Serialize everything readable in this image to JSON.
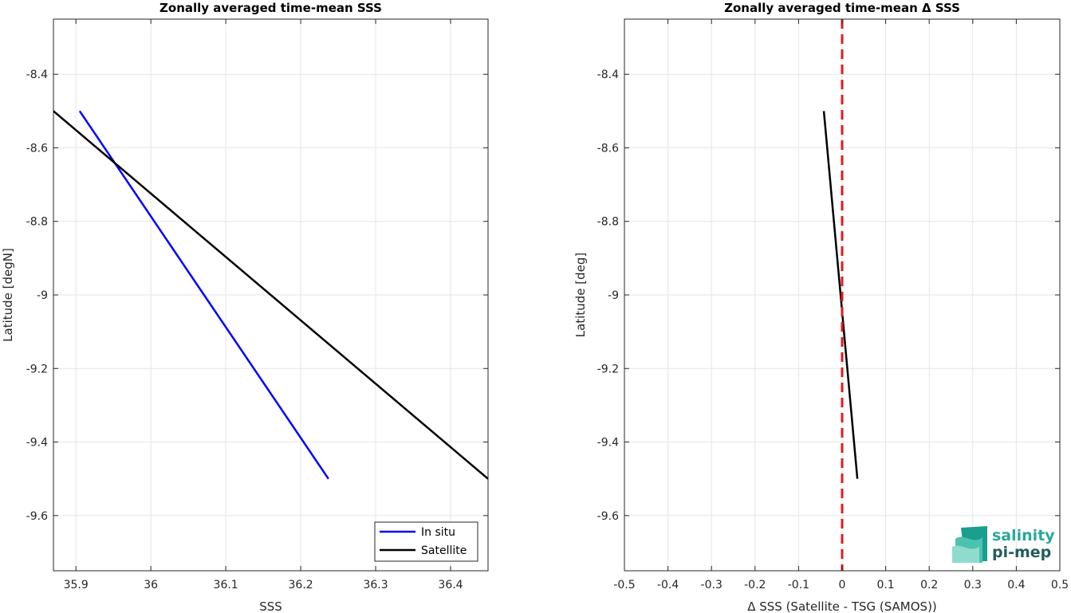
{
  "chart_data": [
    {
      "type": "line",
      "title": "Zonally averaged time-mean SSS",
      "xlabel": "SSS",
      "ylabel": "Latitude [degN]",
      "xlim": [
        35.87,
        36.45
      ],
      "ylim": [
        -9.75,
        -8.25
      ],
      "xticks": [
        35.9,
        36.0,
        36.1,
        36.2,
        36.3,
        36.4
      ],
      "xtick_labels": [
        "35.9",
        "36",
        "36.1",
        "36.2",
        "36.3",
        "36.4"
      ],
      "yticks": [
        -8.4,
        -8.6,
        -8.8,
        -9.0,
        -9.2,
        -9.4,
        -9.6
      ],
      "ytick_labels": [
        "-8.4",
        "-8.6",
        "-8.8",
        "-9",
        "-9.2",
        "-9.4",
        "-9.6"
      ],
      "grid": true,
      "legend_position": "bottom-right",
      "series": [
        {
          "name": "In situ",
          "color": "#0000ff",
          "x": [
            35.905,
            36.237
          ],
          "y": [
            -8.5,
            -9.5
          ]
        },
        {
          "name": "Satellite",
          "color": "#000000",
          "x": [
            35.87,
            36.45
          ],
          "y": [
            -8.5,
            -9.5
          ]
        }
      ]
    },
    {
      "type": "line",
      "title": "Zonally averaged time-mean Δ SSS",
      "xlabel": "Δ SSS (Satellite - TSG (SAMOS))",
      "ylabel": "Latitude [deg]",
      "xlim": [
        -0.5,
        0.5
      ],
      "ylim": [
        -9.75,
        -8.25
      ],
      "xticks": [
        -0.5,
        -0.4,
        -0.3,
        -0.2,
        -0.1,
        0,
        0.1,
        0.2,
        0.3,
        0.4,
        0.5
      ],
      "xtick_labels": [
        "-0.5",
        "-0.4",
        "-0.3",
        "-0.2",
        "-0.1",
        "0",
        "0.1",
        "0.2",
        "0.3",
        "0.4",
        "0.5"
      ],
      "yticks": [
        -8.4,
        -8.6,
        -8.8,
        -9.0,
        -9.2,
        -9.4,
        -9.6
      ],
      "ytick_labels": [
        "-8.4",
        "-8.6",
        "-8.8",
        "-9",
        "-9.2",
        "-9.4",
        "-9.6"
      ],
      "grid": true,
      "series": [
        {
          "color": "#000000",
          "x": [
            -0.042,
            0.035
          ],
          "y": [
            -8.5,
            -9.5
          ]
        }
      ],
      "reference_line": {
        "x": 0,
        "color": "#e31a1c",
        "style": "dashed"
      }
    }
  ],
  "logo": {
    "line1": "salinity",
    "line2": "pi-mep"
  }
}
